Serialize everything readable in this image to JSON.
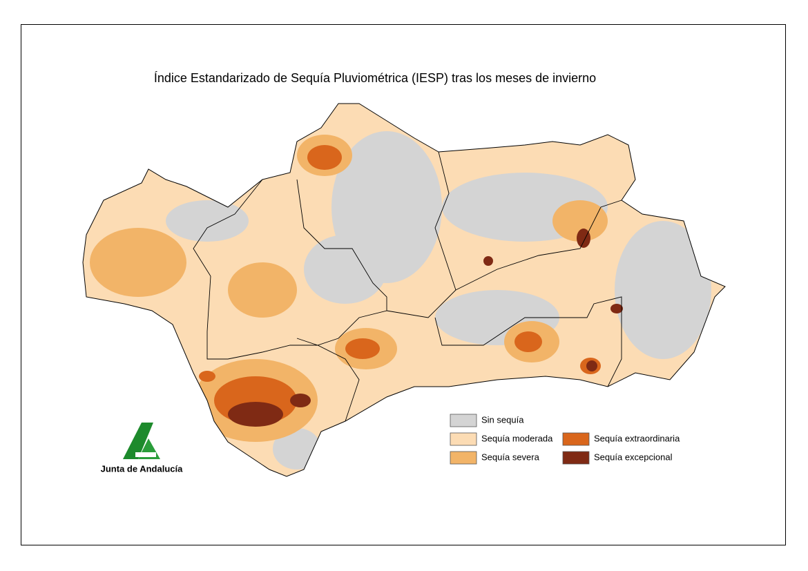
{
  "title": "Índice Estandarizado de Sequía Pluviométrica (IESP) tras los meses de invierno",
  "legend": [
    {
      "label": "Sin sequía",
      "color": "#d4d4d4"
    },
    {
      "label": "Sequía moderada",
      "color": "#fcdcb4"
    },
    {
      "label": "Sequía severa",
      "color": "#f2b468"
    },
    {
      "label": "Sequía extraordinaria",
      "color": "#d9661c"
    },
    {
      "label": "Sequía excepcional",
      "color": "#7f2a14"
    }
  ],
  "logo": {
    "text": "Junta de Andalucía"
  }
}
